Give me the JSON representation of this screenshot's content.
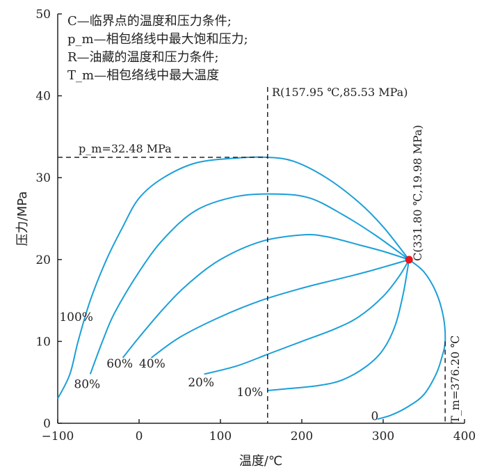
{
  "chart_data": {
    "type": "line",
    "xlabel": "温度/℃",
    "ylabel": "压力/MPa",
    "xlim": [
      -100,
      400
    ],
    "ylim": [
      0,
      50
    ],
    "xticks": [
      -100,
      0,
      100,
      200,
      300,
      400
    ],
    "yticks": [
      0,
      10,
      20,
      30,
      40,
      50
    ],
    "xtick_labels": [
      "−100",
      "0",
      "100",
      "200",
      "300",
      "400"
    ],
    "ytick_labels": [
      "0",
      "10",
      "20",
      "30",
      "40",
      "50"
    ],
    "grid": false,
    "legend_lines": [
      "C—临界点的温度和压力条件;",
      "p_m—相包络线中最大饱和压力;",
      "R—油藏的温度和压力条件;",
      "T_m—相包络线中最大温度"
    ],
    "critical_point": {
      "x": 331.8,
      "y": 19.98,
      "color": "#e8141c",
      "label": "C(331.80 ℃,19.98 MPa)"
    },
    "reservoir": {
      "x": 157.95,
      "y": 85.53,
      "label": "R(157.95 ℃,85.53 MPa)"
    },
    "pm": {
      "value": 32.48,
      "label": "p_m=32.48 MPa"
    },
    "tm": {
      "value": 376.2,
      "label": "T_m=376.20 ℃"
    },
    "line_color": "#1a9fd9",
    "series": [
      {
        "name": "100%",
        "label_at": [
          -98,
          12.5
        ],
        "points": [
          [
            -100,
            3
          ],
          [
            -85,
            6
          ],
          [
            -75,
            10
          ],
          [
            -60,
            15
          ],
          [
            -40,
            20
          ],
          [
            -20,
            24
          ],
          [
            0,
            27.5
          ],
          [
            30,
            30
          ],
          [
            70,
            31.8
          ],
          [
            120,
            32.4
          ],
          [
            158,
            32.48
          ],
          [
            190,
            32
          ],
          [
            230,
            30
          ],
          [
            270,
            27
          ],
          [
            300,
            24
          ],
          [
            331.8,
            19.98
          ]
        ]
      },
      {
        "name": "80%",
        "label_at": [
          -80,
          4.3
        ],
        "points": [
          [
            -60,
            6
          ],
          [
            -45,
            10
          ],
          [
            -30,
            13.5
          ],
          [
            0,
            18.5
          ],
          [
            30,
            22.5
          ],
          [
            70,
            26
          ],
          [
            120,
            27.7
          ],
          [
            170,
            28
          ],
          [
            210,
            27.5
          ],
          [
            250,
            25.5
          ],
          [
            290,
            23
          ],
          [
            331.8,
            19.98
          ]
        ]
      },
      {
        "name": "60%",
        "label_at": [
          -40,
          6.8
        ],
        "points": [
          [
            -20,
            8
          ],
          [
            0,
            10.5
          ],
          [
            30,
            14
          ],
          [
            60,
            17
          ],
          [
            100,
            20
          ],
          [
            150,
            22.2
          ],
          [
            200,
            23
          ],
          [
            230,
            22.8
          ],
          [
            270,
            21.8
          ],
          [
            300,
            21
          ],
          [
            331.8,
            19.98
          ]
        ]
      },
      {
        "name": "40%",
        "label_at": [
          0,
          6.8
        ],
        "points": [
          [
            15,
            8
          ],
          [
            50,
            10.5
          ],
          [
            100,
            13
          ],
          [
            150,
            15
          ],
          [
            200,
            16.5
          ],
          [
            240,
            17.5
          ],
          [
            280,
            18.5
          ],
          [
            331.8,
            19.98
          ]
        ]
      },
      {
        "name": "20%",
        "label_at": [
          60,
          4.5
        ],
        "points": [
          [
            80,
            6
          ],
          [
            120,
            7
          ],
          [
            160,
            8.5
          ],
          [
            200,
            10
          ],
          [
            240,
            11.5
          ],
          [
            270,
            13
          ],
          [
            300,
            15.5
          ],
          [
            320,
            18
          ],
          [
            331.8,
            19.98
          ]
        ]
      },
      {
        "name": "10%",
        "label_at": [
          120,
          3.3
        ],
        "points": [
          [
            158,
            4
          ],
          [
            180,
            4.2
          ],
          [
            220,
            4.6
          ],
          [
            250,
            5.3
          ],
          [
            280,
            7
          ],
          [
            300,
            9
          ],
          [
            315,
            12
          ],
          [
            325,
            16
          ],
          [
            331.8,
            19.98
          ]
        ]
      },
      {
        "name": "0",
        "label_at": [
          285,
          0.4
        ],
        "points": [
          [
            293,
            0.5
          ],
          [
            310,
            1
          ],
          [
            330,
            2
          ],
          [
            350,
            3.5
          ],
          [
            365,
            6
          ],
          [
            372,
            8
          ],
          [
            376.2,
            10
          ],
          [
            374,
            13
          ],
          [
            365,
            16
          ],
          [
            350,
            18.5
          ],
          [
            331.8,
            19.98
          ]
        ]
      }
    ]
  }
}
